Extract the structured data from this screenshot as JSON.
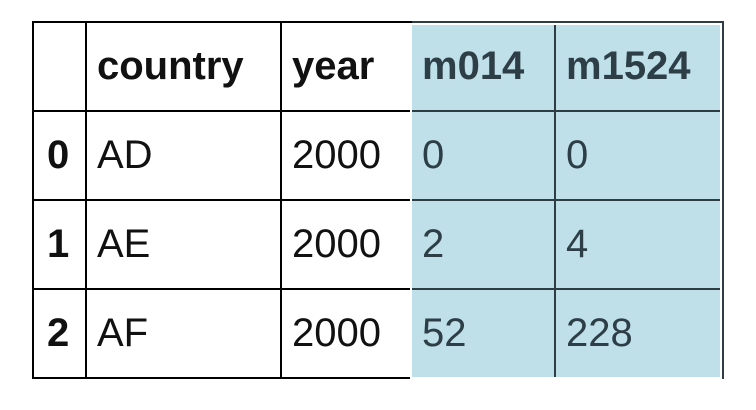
{
  "table": {
    "corner": "",
    "columns": [
      "country",
      "year",
      "m014",
      "m1524"
    ],
    "rows": [
      {
        "index": "0",
        "country": "AD",
        "year": "2000",
        "m014": "0",
        "m1524": "0"
      },
      {
        "index": "1",
        "country": "AE",
        "year": "2000",
        "m014": "2",
        "m1524": "4"
      },
      {
        "index": "2",
        "country": "AF",
        "year": "2000",
        "m014": "52",
        "m1524": "228"
      }
    ],
    "highlight_color": "#bfdfe9"
  }
}
